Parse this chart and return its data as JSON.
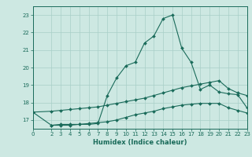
{
  "xlabel": "Humidex (Indice chaleur)",
  "ylabel": "",
  "xlim": [
    0,
    23
  ],
  "ylim": [
    16.5,
    23.5
  ],
  "yticks": [
    17,
    18,
    19,
    20,
    21,
    22,
    23
  ],
  "xticks": [
    0,
    2,
    3,
    4,
    5,
    6,
    7,
    8,
    9,
    10,
    11,
    12,
    13,
    14,
    15,
    16,
    17,
    18,
    19,
    20,
    21,
    22,
    23
  ],
  "bg_color": "#cde8e2",
  "grid_color": "#a8cfc8",
  "line_color": "#1a6b5a",
  "line1_x": [
    2,
    3,
    4,
    5,
    6,
    7,
    8,
    9,
    10,
    11,
    12,
    13,
    14,
    15,
    16,
    17,
    18,
    19,
    20,
    21,
    22,
    23
  ],
  "line1_y": [
    16.7,
    16.7,
    16.7,
    16.75,
    16.75,
    16.8,
    18.4,
    19.4,
    20.1,
    20.3,
    21.4,
    21.8,
    22.8,
    23.0,
    21.1,
    20.3,
    18.75,
    19.0,
    18.6,
    18.5,
    18.45,
    17.7
  ],
  "line2_x": [
    0,
    2,
    3,
    4,
    5,
    6,
    7,
    8,
    9,
    10,
    11,
    12,
    13,
    14,
    15,
    16,
    17,
    18,
    19,
    20,
    21,
    22,
    23
  ],
  "line2_y": [
    17.45,
    17.5,
    17.55,
    17.6,
    17.65,
    17.7,
    17.75,
    17.85,
    17.95,
    18.05,
    18.15,
    18.25,
    18.4,
    18.55,
    18.7,
    18.85,
    18.95,
    19.05,
    19.15,
    19.25,
    18.8,
    18.55,
    18.4
  ],
  "line3_x": [
    0,
    2,
    3,
    4,
    5,
    6,
    7,
    8,
    9,
    10,
    11,
    12,
    13,
    14,
    15,
    16,
    17,
    18,
    19,
    20,
    21,
    22,
    23
  ],
  "line3_y": [
    17.45,
    16.7,
    16.75,
    16.75,
    16.75,
    16.8,
    16.85,
    16.9,
    17.0,
    17.15,
    17.3,
    17.4,
    17.5,
    17.65,
    17.75,
    17.85,
    17.9,
    17.95,
    17.95,
    17.95,
    17.7,
    17.55,
    17.4
  ],
  "tick_fontsize": 5.0,
  "xlabel_fontsize": 6.0
}
